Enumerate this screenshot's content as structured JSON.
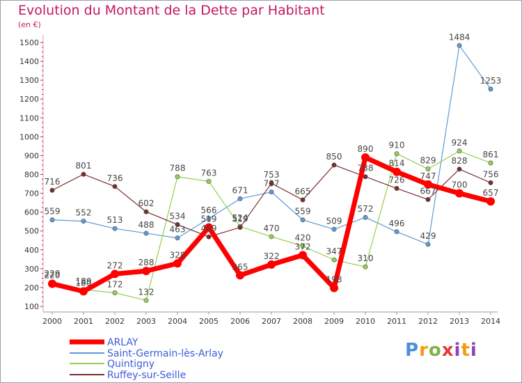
{
  "header": {
    "title": "Evolution du Montant de la Dette par Habitant",
    "unit": "(en €)"
  },
  "logo": {
    "text": "Proxiti",
    "letters": [
      "P",
      "r",
      "o",
      "x",
      "i",
      "t",
      "i"
    ]
  },
  "colors": {
    "title": "#c2185b",
    "ARLAY": "#ff0000",
    "Saint-Germain-lès-Arlay": "#5b9bd5",
    "Quintigny": "#92d050",
    "Ruffey-sur-Seille": "#7b2c2c"
  },
  "chart_data": {
    "type": "line",
    "title": "Evolution du Montant de la Dette par Habitant",
    "ylabel": "(en €)",
    "xlabel": "",
    "ylim": [
      100,
      1500
    ],
    "yticks": [
      100,
      200,
      300,
      400,
      500,
      600,
      700,
      800,
      900,
      1000,
      1100,
      1200,
      1300,
      1400,
      1500
    ],
    "x": [
      "2000",
      "2001",
      "2002",
      "2003",
      "2004",
      "2005",
      "2006",
      "2007",
      "2008",
      "2009",
      "2010",
      "2011",
      "2012",
      "2013",
      "2014"
    ],
    "grid": false,
    "legend_position": "bottom-left",
    "series": [
      {
        "name": "ARLAY",
        "values": [
          220,
          180,
          272,
          288,
          328,
          519,
          265,
          322,
          372,
          198,
          890,
          814,
          747,
          700,
          657
        ]
      },
      {
        "name": "Saint-Germain-lès-Arlay",
        "values": [
          559,
          552,
          513,
          488,
          463,
          566,
          671,
          707,
          559,
          509,
          572,
          496,
          429,
          1484,
          1253
        ]
      },
      {
        "name": "Quintigny",
        "values": [
          229,
          189,
          172,
          132,
          788,
          763,
          524,
          470,
          420,
          347,
          310,
          910,
          829,
          924,
          861
        ]
      },
      {
        "name": "Ruffey-sur-Seille",
        "values": [
          716,
          801,
          736,
          602,
          534,
          469,
          519,
          753,
          665,
          850,
          788,
          726,
          667,
          828,
          756
        ]
      }
    ]
  }
}
